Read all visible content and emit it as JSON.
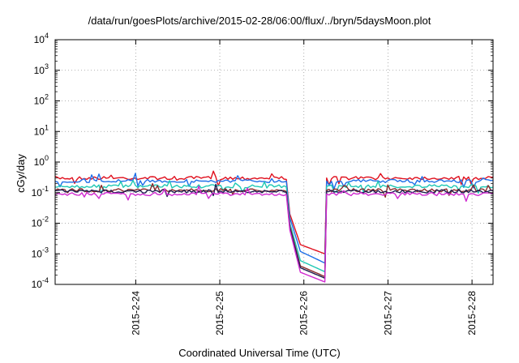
{
  "chart_data": {
    "type": "line",
    "title": "/data/run/goesPlots/archive/2015-02-28/06:00/flux/../bryn/5daysMoon.plot",
    "xlabel": "Coordinated Universal Time (UTC)",
    "ylabel": "cGy/day",
    "yscale": "log",
    "ylim": [
      0.0001,
      10000
    ],
    "xlim": [
      "2015-02-23T01:00",
      "2015-02-28T06:00"
    ],
    "x_ticks": [
      "2015-2-24",
      "2015-2-25",
      "2015-2-26",
      "2015-2-27",
      "2015-2-28"
    ],
    "y_ticks": [
      {
        "value": 0.0001,
        "base": "10",
        "exp": "-4"
      },
      {
        "value": 0.001,
        "base": "10",
        "exp": "-3"
      },
      {
        "value": 0.01,
        "base": "10",
        "exp": "-2"
      },
      {
        "value": 0.1,
        "base": "10",
        "exp": "-1"
      },
      {
        "value": 1,
        "base": "10",
        "exp": "0"
      },
      {
        "value": 10,
        "base": "10",
        "exp": "1"
      },
      {
        "value": 100,
        "base": "10",
        "exp": "2"
      },
      {
        "value": 1000,
        "base": "10",
        "exp": "3"
      },
      {
        "value": 10000,
        "base": "10",
        "exp": "4"
      }
    ],
    "grid": true,
    "legend": "none",
    "series": [
      {
        "color": "#e0101e",
        "points": [
          [
            "2015-02-23T01:00",
            0.3
          ],
          [
            "2015-02-25T19:00",
            0.3
          ],
          [
            "2015-02-25T20:00",
            0.02
          ],
          [
            "2015-02-25T23:00",
            0.002
          ],
          [
            "2015-02-26T06:00",
            0.001
          ],
          [
            "2015-02-26T06:30",
            0.3
          ],
          [
            "2015-02-28T06:00",
            0.3
          ]
        ]
      },
      {
        "color": "#1e6fe8",
        "points": [
          [
            "2015-02-23T01:00",
            0.24
          ],
          [
            "2015-02-25T19:00",
            0.24
          ],
          [
            "2015-02-25T20:00",
            0.015
          ],
          [
            "2015-02-25T23:00",
            0.0012
          ],
          [
            "2015-02-26T06:00",
            0.0005
          ],
          [
            "2015-02-26T06:30",
            0.24
          ],
          [
            "2015-02-28T06:00",
            0.24
          ]
        ]
      },
      {
        "color": "#1ec8b4",
        "points": [
          [
            "2015-02-23T01:00",
            0.16
          ],
          [
            "2015-02-25T19:00",
            0.16
          ],
          [
            "2015-02-25T20:00",
            0.01
          ],
          [
            "2015-02-25T23:00",
            0.0006
          ],
          [
            "2015-02-26T06:00",
            0.00026
          ],
          [
            "2015-02-26T06:30",
            0.16
          ],
          [
            "2015-02-28T06:00",
            0.16
          ]
        ]
      },
      {
        "color": "#8a2c2c",
        "points": [
          [
            "2015-02-23T01:00",
            0.12
          ],
          [
            "2015-02-25T19:00",
            0.12
          ],
          [
            "2015-02-25T20:00",
            0.008
          ],
          [
            "2015-02-25T23:00",
            0.0004
          ],
          [
            "2015-02-26T06:00",
            0.00018
          ],
          [
            "2015-02-26T06:30",
            0.12
          ],
          [
            "2015-02-28T06:00",
            0.12
          ]
        ]
      },
      {
        "color": "#1e1e50",
        "points": [
          [
            "2015-02-23T01:00",
            0.11
          ],
          [
            "2015-02-25T19:00",
            0.11
          ],
          [
            "2015-02-25T20:00",
            0.007
          ],
          [
            "2015-02-25T23:00",
            0.00035
          ],
          [
            "2015-02-26T06:00",
            0.00016
          ],
          [
            "2015-02-26T06:30",
            0.11
          ],
          [
            "2015-02-28T06:00",
            0.11
          ]
        ]
      },
      {
        "color": "#d028d0",
        "points": [
          [
            "2015-02-23T01:00",
            0.09
          ],
          [
            "2015-02-25T19:00",
            0.09
          ],
          [
            "2015-02-25T20:00",
            0.006
          ],
          [
            "2015-02-25T23:00",
            0.00025
          ],
          [
            "2015-02-26T06:00",
            0.00012
          ],
          [
            "2015-02-26T06:30",
            0.09
          ],
          [
            "2015-02-28T06:00",
            0.09
          ]
        ]
      }
    ]
  }
}
